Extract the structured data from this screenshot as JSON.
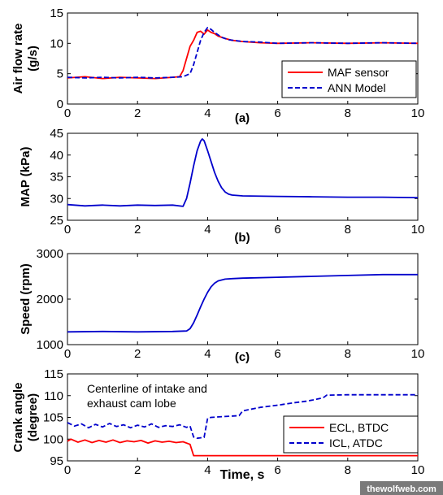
{
  "chart_data": [
    {
      "type": "line",
      "panel_label": "(a)",
      "ylabel": "Air flow rate (g/s)",
      "ylabel_lines": [
        "Air flow rate",
        "(g/s)"
      ],
      "xlim": [
        0,
        10
      ],
      "ylim": [
        0,
        15
      ],
      "xticks": [
        "0",
        "2",
        "4",
        "6",
        "8",
        "10"
      ],
      "yticks": [
        "0",
        "5",
        "10",
        "15"
      ],
      "legend_placement": "bottom-right",
      "series": [
        {
          "name": "MAF sensor",
          "color": "#ff0000",
          "style": "solid",
          "x": [
            0,
            0.5,
            1,
            1.5,
            2,
            2.5,
            3,
            3.2,
            3.3,
            3.4,
            3.5,
            3.6,
            3.7,
            3.8,
            3.9,
            4.0,
            4.1,
            4.2,
            4.3,
            4.5,
            4.7,
            5.0,
            5.5,
            6,
            7,
            8,
            9,
            10
          ],
          "y": [
            4.3,
            4.5,
            4.2,
            4.4,
            4.3,
            4.2,
            4.4,
            4.5,
            5.5,
            7.5,
            9.5,
            10.5,
            11.8,
            12.0,
            11.5,
            12.2,
            11.8,
            11.6,
            11.2,
            10.8,
            10.5,
            10.3,
            10.1,
            10.0,
            10.1,
            10.0,
            10.1,
            10.0
          ]
        },
        {
          "name": "ANN Model",
          "color": "#0000cc",
          "style": "dashed",
          "x": [
            0,
            0.5,
            1,
            1.5,
            2,
            2.5,
            3,
            3.3,
            3.5,
            3.6,
            3.7,
            3.8,
            3.9,
            4.0,
            4.1,
            4.2,
            4.4,
            4.6,
            5.0,
            5.5,
            6,
            7,
            8,
            9,
            10
          ],
          "y": [
            4.4,
            4.3,
            4.4,
            4.3,
            4.4,
            4.3,
            4.4,
            4.5,
            5.0,
            6.5,
            8.5,
            10.5,
            11.8,
            12.6,
            12.3,
            11.8,
            11.0,
            10.6,
            10.3,
            10.2,
            10.0,
            10.1,
            10.0,
            10.1,
            10.0
          ]
        }
      ]
    },
    {
      "type": "line",
      "panel_label": "(b)",
      "ylabel": "MAP (kPa)",
      "ylabel_lines": [
        "MAP (kPa)"
      ],
      "xlim": [
        0,
        10
      ],
      "ylim": [
        25,
        45
      ],
      "xticks": [
        "0",
        "2",
        "4",
        "6",
        "8",
        "10"
      ],
      "yticks": [
        "25",
        "30",
        "35",
        "40",
        "45"
      ],
      "series": [
        {
          "color": "#0000cc",
          "style": "solid",
          "x": [
            0,
            0.5,
            1,
            1.5,
            2,
            2.5,
            3,
            3.3,
            3.4,
            3.5,
            3.6,
            3.7,
            3.8,
            3.85,
            3.9,
            4.0,
            4.1,
            4.2,
            4.3,
            4.4,
            4.5,
            4.6,
            4.7,
            5.0,
            6,
            7,
            8,
            9,
            10
          ],
          "y": [
            28.6,
            28.3,
            28.5,
            28.3,
            28.5,
            28.4,
            28.5,
            28.2,
            30.0,
            33.5,
            37.5,
            41.0,
            43.2,
            43.7,
            43.3,
            41.0,
            38.5,
            36.0,
            34.0,
            32.5,
            31.5,
            31.0,
            30.8,
            30.6,
            30.5,
            30.4,
            30.3,
            30.3,
            30.2
          ]
        }
      ]
    },
    {
      "type": "line",
      "panel_label": "(c)",
      "ylabel": "Speed (rpm)",
      "ylabel_lines": [
        "Speed (rpm)"
      ],
      "xlim": [
        0,
        10
      ],
      "ylim": [
        1000,
        3000
      ],
      "xticks": [
        "0",
        "2",
        "4",
        "6",
        "8",
        "10"
      ],
      "yticks": [
        "1000",
        "2000",
        "3000"
      ],
      "series": [
        {
          "color": "#0000cc",
          "style": "solid",
          "x": [
            0,
            1,
            2,
            3,
            3.4,
            3.5,
            3.6,
            3.7,
            3.8,
            3.9,
            4.0,
            4.1,
            4.2,
            4.3,
            4.4,
            4.5,
            4.7,
            5.0,
            6,
            7,
            8,
            9,
            10
          ],
          "y": [
            1280,
            1290,
            1280,
            1290,
            1300,
            1350,
            1480,
            1650,
            1830,
            2000,
            2150,
            2270,
            2350,
            2400,
            2420,
            2440,
            2450,
            2460,
            2480,
            2500,
            2520,
            2540,
            2540
          ]
        }
      ]
    },
    {
      "type": "line",
      "panel_label": "",
      "ylabel": "Crank angle (degree)",
      "ylabel_lines": [
        "Crank angle",
        "(degree)"
      ],
      "xlabel": "Time, s",
      "xlim": [
        0,
        10
      ],
      "ylim": [
        95,
        115
      ],
      "xticks": [
        "0",
        "2",
        "4",
        "6",
        "8",
        "10"
      ],
      "yticks": [
        "95",
        "100",
        "105",
        "110",
        "115"
      ],
      "annotation_lines": [
        "Centerline of intake and",
        "exhaust cam lobe"
      ],
      "legend_placement": "bottom-right",
      "series": [
        {
          "name": "ECL, BTDC",
          "color": "#ff0000",
          "style": "solid",
          "x": [
            0,
            0.1,
            0.3,
            0.5,
            0.7,
            0.9,
            1.1,
            1.3,
            1.5,
            1.7,
            1.9,
            2.1,
            2.3,
            2.5,
            2.7,
            2.9,
            3.1,
            3.3,
            3.5,
            3.55,
            3.6,
            10
          ],
          "y": [
            99.5,
            100.0,
            99.3,
            99.8,
            99.2,
            99.7,
            99.3,
            99.8,
            99.2,
            99.6,
            99.4,
            99.7,
            99.1,
            99.6,
            99.3,
            99.5,
            99.2,
            99.4,
            98.8,
            97.5,
            96.2,
            96.2
          ]
        },
        {
          "name": "ICL, ATDC",
          "color": "#0000cc",
          "style": "dashed",
          "x": [
            0,
            0.2,
            0.4,
            0.6,
            0.8,
            1.0,
            1.2,
            1.4,
            1.6,
            1.8,
            2.0,
            2.2,
            2.4,
            2.6,
            2.8,
            3.0,
            3.2,
            3.4,
            3.5,
            3.6,
            3.7,
            3.9,
            4.0,
            4.1,
            4.5,
            4.9,
            5.0,
            5.5,
            6.0,
            6.5,
            6.8,
            7.0,
            7.3,
            7.4,
            8,
            9,
            10
          ],
          "y": [
            103.8,
            103.0,
            103.5,
            102.6,
            103.4,
            102.8,
            103.6,
            102.9,
            103.3,
            102.6,
            103.2,
            102.8,
            103.5,
            102.7,
            103.1,
            102.9,
            103.3,
            102.7,
            103.0,
            100.5,
            100.2,
            100.4,
            104.8,
            105.0,
            105.2,
            105.4,
            106.5,
            107.3,
            107.8,
            108.4,
            108.7,
            109.0,
            109.5,
            110.1,
            110.2,
            110.2,
            110.2
          ]
        }
      ]
    }
  ],
  "watermark": "thewolfweb.com"
}
